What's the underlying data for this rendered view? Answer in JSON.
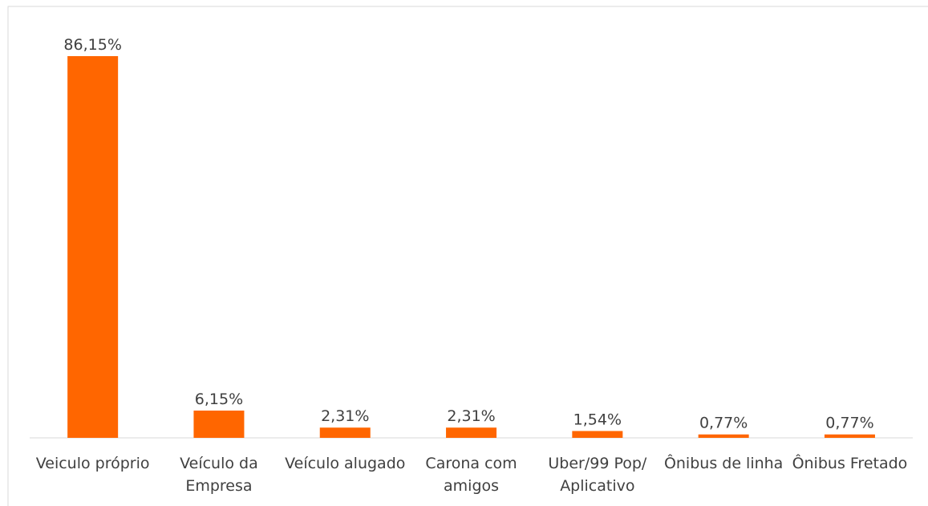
{
  "chart_data": {
    "type": "bar",
    "categories": [
      "Veiculo próprio",
      "Veículo da Empresa",
      "Veículo alugado",
      "Carona com amigos",
      "Uber/99 Pop/ Aplicativo",
      "Ônibus de linha",
      "Ônibus Fretado"
    ],
    "values": [
      86.15,
      6.15,
      2.31,
      2.31,
      1.54,
      0.77,
      0.77
    ],
    "value_labels": [
      "86,15%",
      "6,15%",
      "2,31%",
      "2,31%",
      "1,54%",
      "0,77%",
      "0,77%"
    ],
    "color": "#ff6600"
  }
}
